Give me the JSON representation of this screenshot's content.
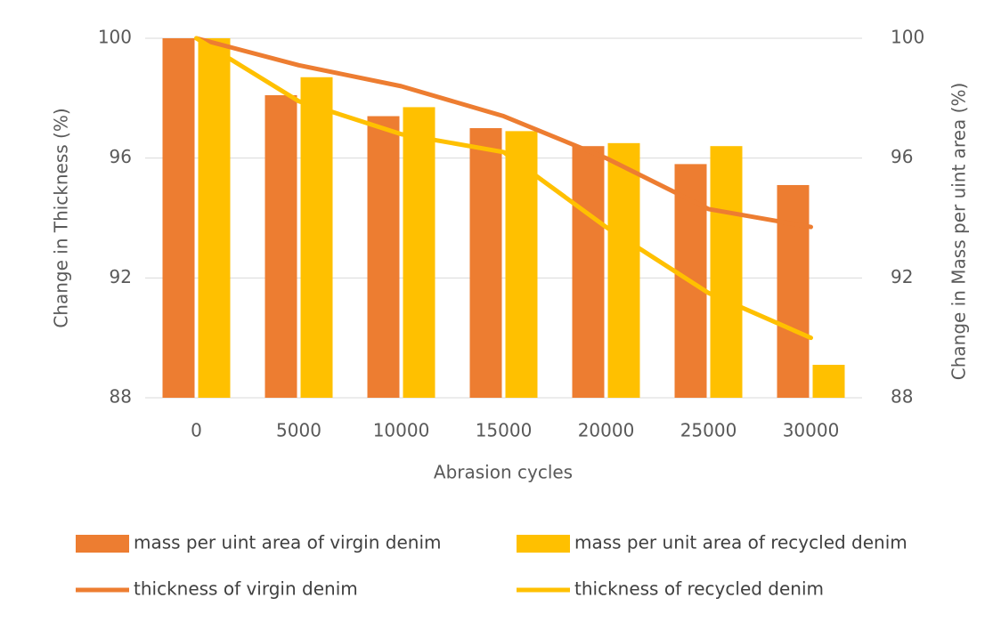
{
  "chart_data": {
    "type": "bar",
    "x_label": "Abrasion cycles",
    "y_label": "Change in Thickness (%)",
    "y2_label": "Change in Mass per uint area (%)",
    "categories": [
      "0",
      "5000",
      "10000",
      "15000",
      "20000",
      "25000",
      "30000"
    ],
    "ylim": [
      88,
      100
    ],
    "yticks": [
      88,
      92,
      96,
      100
    ],
    "y2lim": [
      88,
      100
    ],
    "y2ticks": [
      88,
      92,
      96,
      100
    ],
    "grid": true,
    "series": [
      {
        "name": "mass per uint area of virgin denim",
        "type": "bar",
        "color": "#ed7d31",
        "values": [
          100,
          98.1,
          97.4,
          97.0,
          96.4,
          95.8,
          95.1
        ]
      },
      {
        "name": "mass per unit area of recycled denim",
        "type": "bar",
        "color": "#ffc000",
        "values": [
          100,
          98.7,
          97.7,
          96.9,
          96.5,
          96.4,
          89.1
        ]
      },
      {
        "name": "thickness of virgin denim",
        "type": "line",
        "axis": "y2",
        "color": "#ed7d31",
        "values": [
          100,
          99.1,
          98.4,
          97.4,
          96.0,
          94.3,
          93.7
        ]
      },
      {
        "name": "thickness of recycled denim",
        "type": "line",
        "axis": "y2",
        "color": "#ffc000",
        "values": [
          100,
          97.9,
          96.8,
          96.2,
          93.7,
          91.5,
          90.0
        ]
      }
    ]
  }
}
